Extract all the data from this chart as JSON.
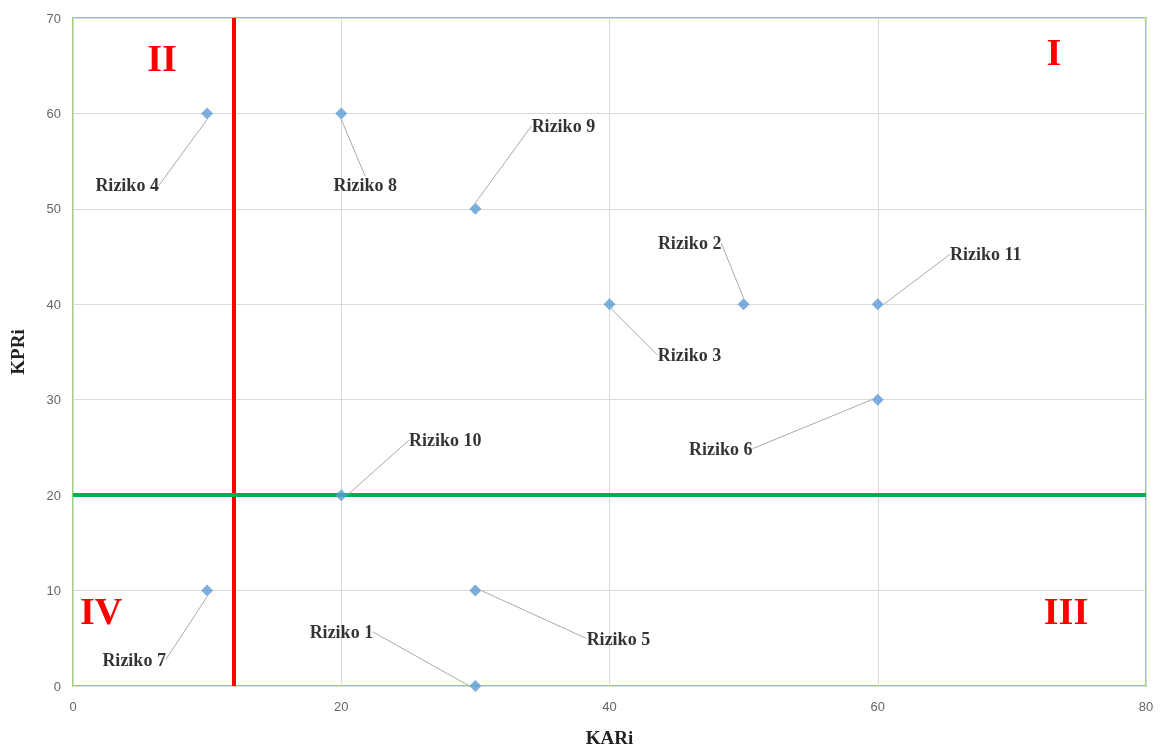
{
  "chart_data": {
    "type": "scatter",
    "xlabel": "KARi",
    "ylabel": "KPRi",
    "x": [
      30,
      50,
      40,
      10,
      30,
      60,
      10,
      20,
      30,
      20,
      60
    ],
    "values": [
      0,
      40,
      40,
      60,
      10,
      30,
      10,
      60,
      50,
      20,
      40
    ],
    "color": "#5b9bd5",
    "marker": "diamond",
    "grid": true,
    "xlim": [
      0,
      80
    ],
    "xticks": [
      0,
      20,
      40,
      60,
      80
    ],
    "ylim": [
      0,
      70
    ],
    "yticks": [
      0,
      10,
      20,
      30,
      40,
      50,
      60,
      70
    ],
    "ref_lines": [
      {
        "axis": "x",
        "value": 12,
        "color": "#ff0000"
      },
      {
        "axis": "y",
        "value": 20,
        "color": "#00b050"
      }
    ],
    "annotations": [
      {
        "text": "Riziko 1",
        "x": 30,
        "y": 0
      },
      {
        "text": "Riziko 2",
        "x": 50,
        "y": 40
      },
      {
        "text": "Riziko 3",
        "x": 40,
        "y": 40
      },
      {
        "text": "Riziko 4",
        "x": 10,
        "y": 60
      },
      {
        "text": "Riziko 5",
        "x": 30,
        "y": 10
      },
      {
        "text": "Riziko 6",
        "x": 60,
        "y": 30
      },
      {
        "text": "Riziko 7",
        "x": 10,
        "y": 10
      },
      {
        "text": "Riziko 8",
        "x": 20,
        "y": 60
      },
      {
        "text": "Riziko 9",
        "x": 30,
        "y": 50
      },
      {
        "text": "Riziko 10",
        "x": 20,
        "y": 20
      },
      {
        "text": "Riziko 11",
        "x": 60,
        "y": 40
      },
      "I",
      "II",
      "III",
      "IV"
    ]
  }
}
